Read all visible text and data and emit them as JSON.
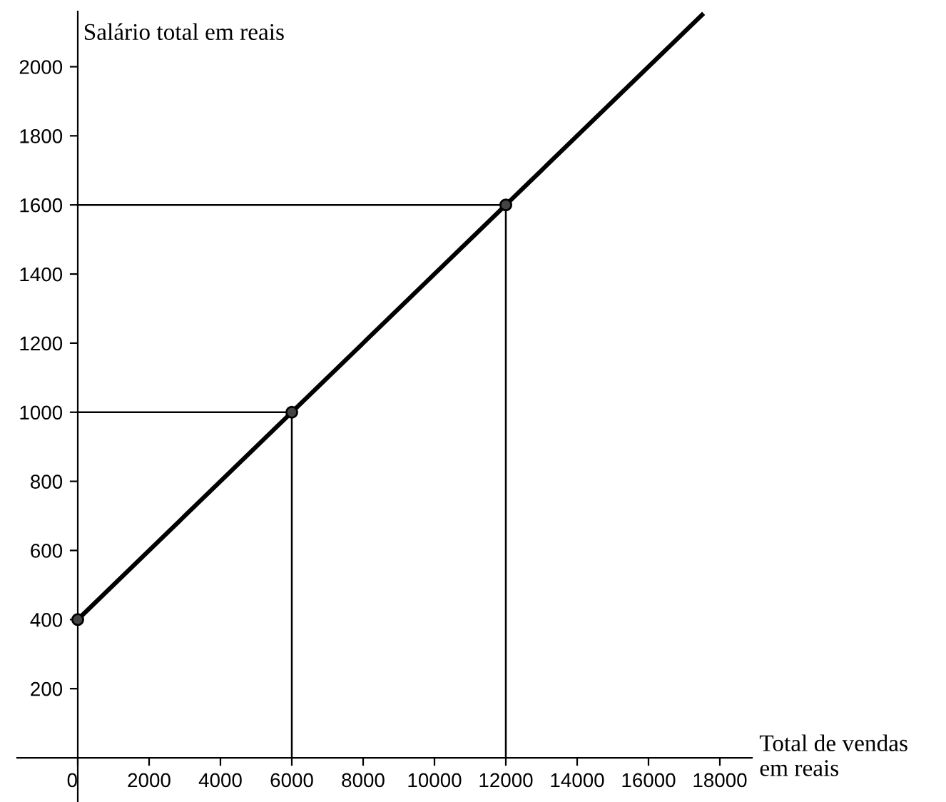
{
  "chart_data": {
    "type": "line",
    "xlabel": "Total de vendas\nem reais",
    "ylabel": "Salário total em reais",
    "xlim": [
      -1700,
      18900
    ],
    "ylim": [
      -128,
      2160
    ],
    "xticks": [
      0,
      2000,
      4000,
      6000,
      8000,
      10000,
      12000,
      14000,
      16000,
      18000
    ],
    "yticks": [
      200,
      400,
      600,
      800,
      1000,
      1200,
      1400,
      1600,
      1800,
      2000
    ],
    "grid": false,
    "legend": false,
    "series": [
      {
        "color": "#000000",
        "x": [
          0,
          17500
        ],
        "values": [
          400,
          2150
        ],
        "marker": "none"
      },
      {
        "type": "scatter",
        "color": "#444444",
        "x": [
          0,
          6000,
          12000
        ],
        "values": [
          400,
          1000,
          1600
        ],
        "marker": "circle"
      },
      {
        "type": "line",
        "color": "#000000",
        "x": [
          0,
          6000,
          6000
        ],
        "values": [
          1000,
          1000,
          0
        ],
        "marker": "none"
      },
      {
        "type": "line",
        "color": "#000000",
        "x": [
          0,
          12000,
          12000
        ],
        "values": [
          1600,
          1600,
          0
        ],
        "marker": "none"
      }
    ]
  }
}
